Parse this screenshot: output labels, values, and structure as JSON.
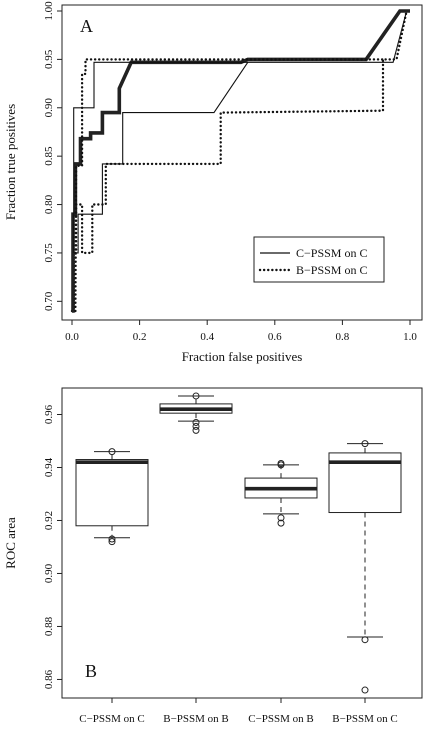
{
  "chart_data": [
    {
      "type": "line",
      "panel_label": "A",
      "title": "",
      "xlabel": "Fraction false positives",
      "ylabel": "Fraction true positives",
      "xlim": [
        0,
        1
      ],
      "ylim": [
        0.69,
        1.0
      ],
      "x_ticks": [
        "0.0",
        "0.2",
        "0.4",
        "0.6",
        "0.8",
        "1.0"
      ],
      "y_ticks": [
        "0.70",
        "0.75",
        "0.80",
        "0.85",
        "0.90",
        "0.95",
        "1.00"
      ],
      "legend": {
        "position": "bottom-right",
        "entries": [
          "C−PSSM on C",
          "B−PSSM on C"
        ]
      },
      "series": [
        {
          "name": "C−PSSM on C",
          "style": "thin-solid",
          "color": "#111111",
          "x": [
            0,
            0.005,
            0.005,
            0.018,
            0.018,
            0.055,
            0.055,
            0.09,
            0.09,
            0.13,
            0.13,
            0.15,
            0.15,
            0.18,
            0.18,
            0.42,
            0.52,
            0.87,
            0.95,
            0.99,
            1.0
          ],
          "y": [
            0.69,
            0.69,
            0.75,
            0.75,
            0.79,
            0.79,
            0.79,
            0.79,
            0.842,
            0.842,
            0.842,
            0.842,
            0.895,
            0.895,
            0.895,
            0.895,
            0.947,
            0.947,
            0.947,
            1.0,
            1.0
          ]
        },
        {
          "name": "B−PSSM on C",
          "style": "dotted",
          "color": "#111111",
          "x": [
            0,
            0.005,
            0.005,
            0.012,
            0.012,
            0.03,
            0.03,
            0.06,
            0.06,
            0.1,
            0.1,
            0.15,
            0.15,
            0.3,
            0.3,
            0.33,
            0.33,
            0.44,
            0.44,
            0.92,
            0.92,
            0.96,
            0.99,
            1.0
          ],
          "y": [
            0.69,
            0.69,
            0.75,
            0.75,
            0.8,
            0.8,
            0.75,
            0.75,
            0.8,
            0.8,
            0.842,
            0.842,
            0.842,
            0.842,
            0.842,
            0.842,
            0.842,
            0.842,
            0.895,
            0.897,
            0.95,
            0.95,
            1.0,
            1.0
          ]
        },
        {
          "name": "",
          "style": "thick-solid",
          "color": "#222222",
          "x": [
            0,
            0.003,
            0.003,
            0.01,
            0.01,
            0.025,
            0.025,
            0.055,
            0.055,
            0.09,
            0.09,
            0.14,
            0.14,
            0.175,
            0.175,
            0.5,
            0.52,
            0.87,
            0.97,
            1.0
          ],
          "y": [
            0.69,
            0.69,
            0.79,
            0.79,
            0.842,
            0.842,
            0.868,
            0.868,
            0.874,
            0.874,
            0.895,
            0.895,
            0.92,
            0.947,
            0.947,
            0.947,
            0.95,
            0.95,
            1.0,
            1.0
          ]
        },
        {
          "name": "",
          "style": "thin-solid",
          "color": "#111111",
          "x": [
            0.005,
            0.005,
            0.05,
            0.05,
            0.065,
            0.065,
            0.52
          ],
          "y": [
            0.75,
            0.9,
            0.9,
            0.9,
            0.9,
            0.947,
            0.947
          ]
        },
        {
          "name": "",
          "style": "dotted",
          "color": "#111111",
          "x": [
            0.01,
            0.012,
            0.03,
            0.03,
            0.04,
            0.04,
            0.5,
            0.86,
            0.92
          ],
          "y": [
            0.69,
            0.84,
            0.84,
            0.935,
            0.935,
            0.95,
            0.95,
            0.95,
            0.95
          ]
        }
      ]
    },
    {
      "type": "box",
      "panel_label": "B",
      "title": "",
      "xlabel": "",
      "ylabel": "ROC area",
      "ylim": [
        0.853,
        0.97
      ],
      "y_ticks": [
        "0.86",
        "0.88",
        "0.90",
        "0.92",
        "0.94",
        "0.96"
      ],
      "categories": [
        "C−PSSM on C",
        "B−PSSM on B",
        "C−PSSM on B",
        "B−PSSM on C"
      ],
      "boxes": [
        {
          "whisker_low": 0.9135,
          "q1": 0.918,
          "median": 0.942,
          "q3": 0.943,
          "whisker_high": 0.946,
          "outliers": [
            0.912,
            0.913,
            0.946
          ]
        },
        {
          "whisker_low": 0.9575,
          "q1": 0.9605,
          "median": 0.962,
          "q3": 0.964,
          "whisker_high": 0.967,
          "outliers": [
            0.954,
            0.9555,
            0.957,
            0.967
          ]
        },
        {
          "whisker_low": 0.9225,
          "q1": 0.9285,
          "median": 0.932,
          "q3": 0.936,
          "whisker_high": 0.941,
          "outliers": [
            0.919,
            0.921,
            0.941,
            0.9415
          ]
        },
        {
          "whisker_low": 0.876,
          "q1": 0.923,
          "median": 0.942,
          "q3": 0.9455,
          "whisker_high": 0.949,
          "outliers": [
            0.856,
            0.875,
            0.949
          ]
        }
      ]
    }
  ]
}
